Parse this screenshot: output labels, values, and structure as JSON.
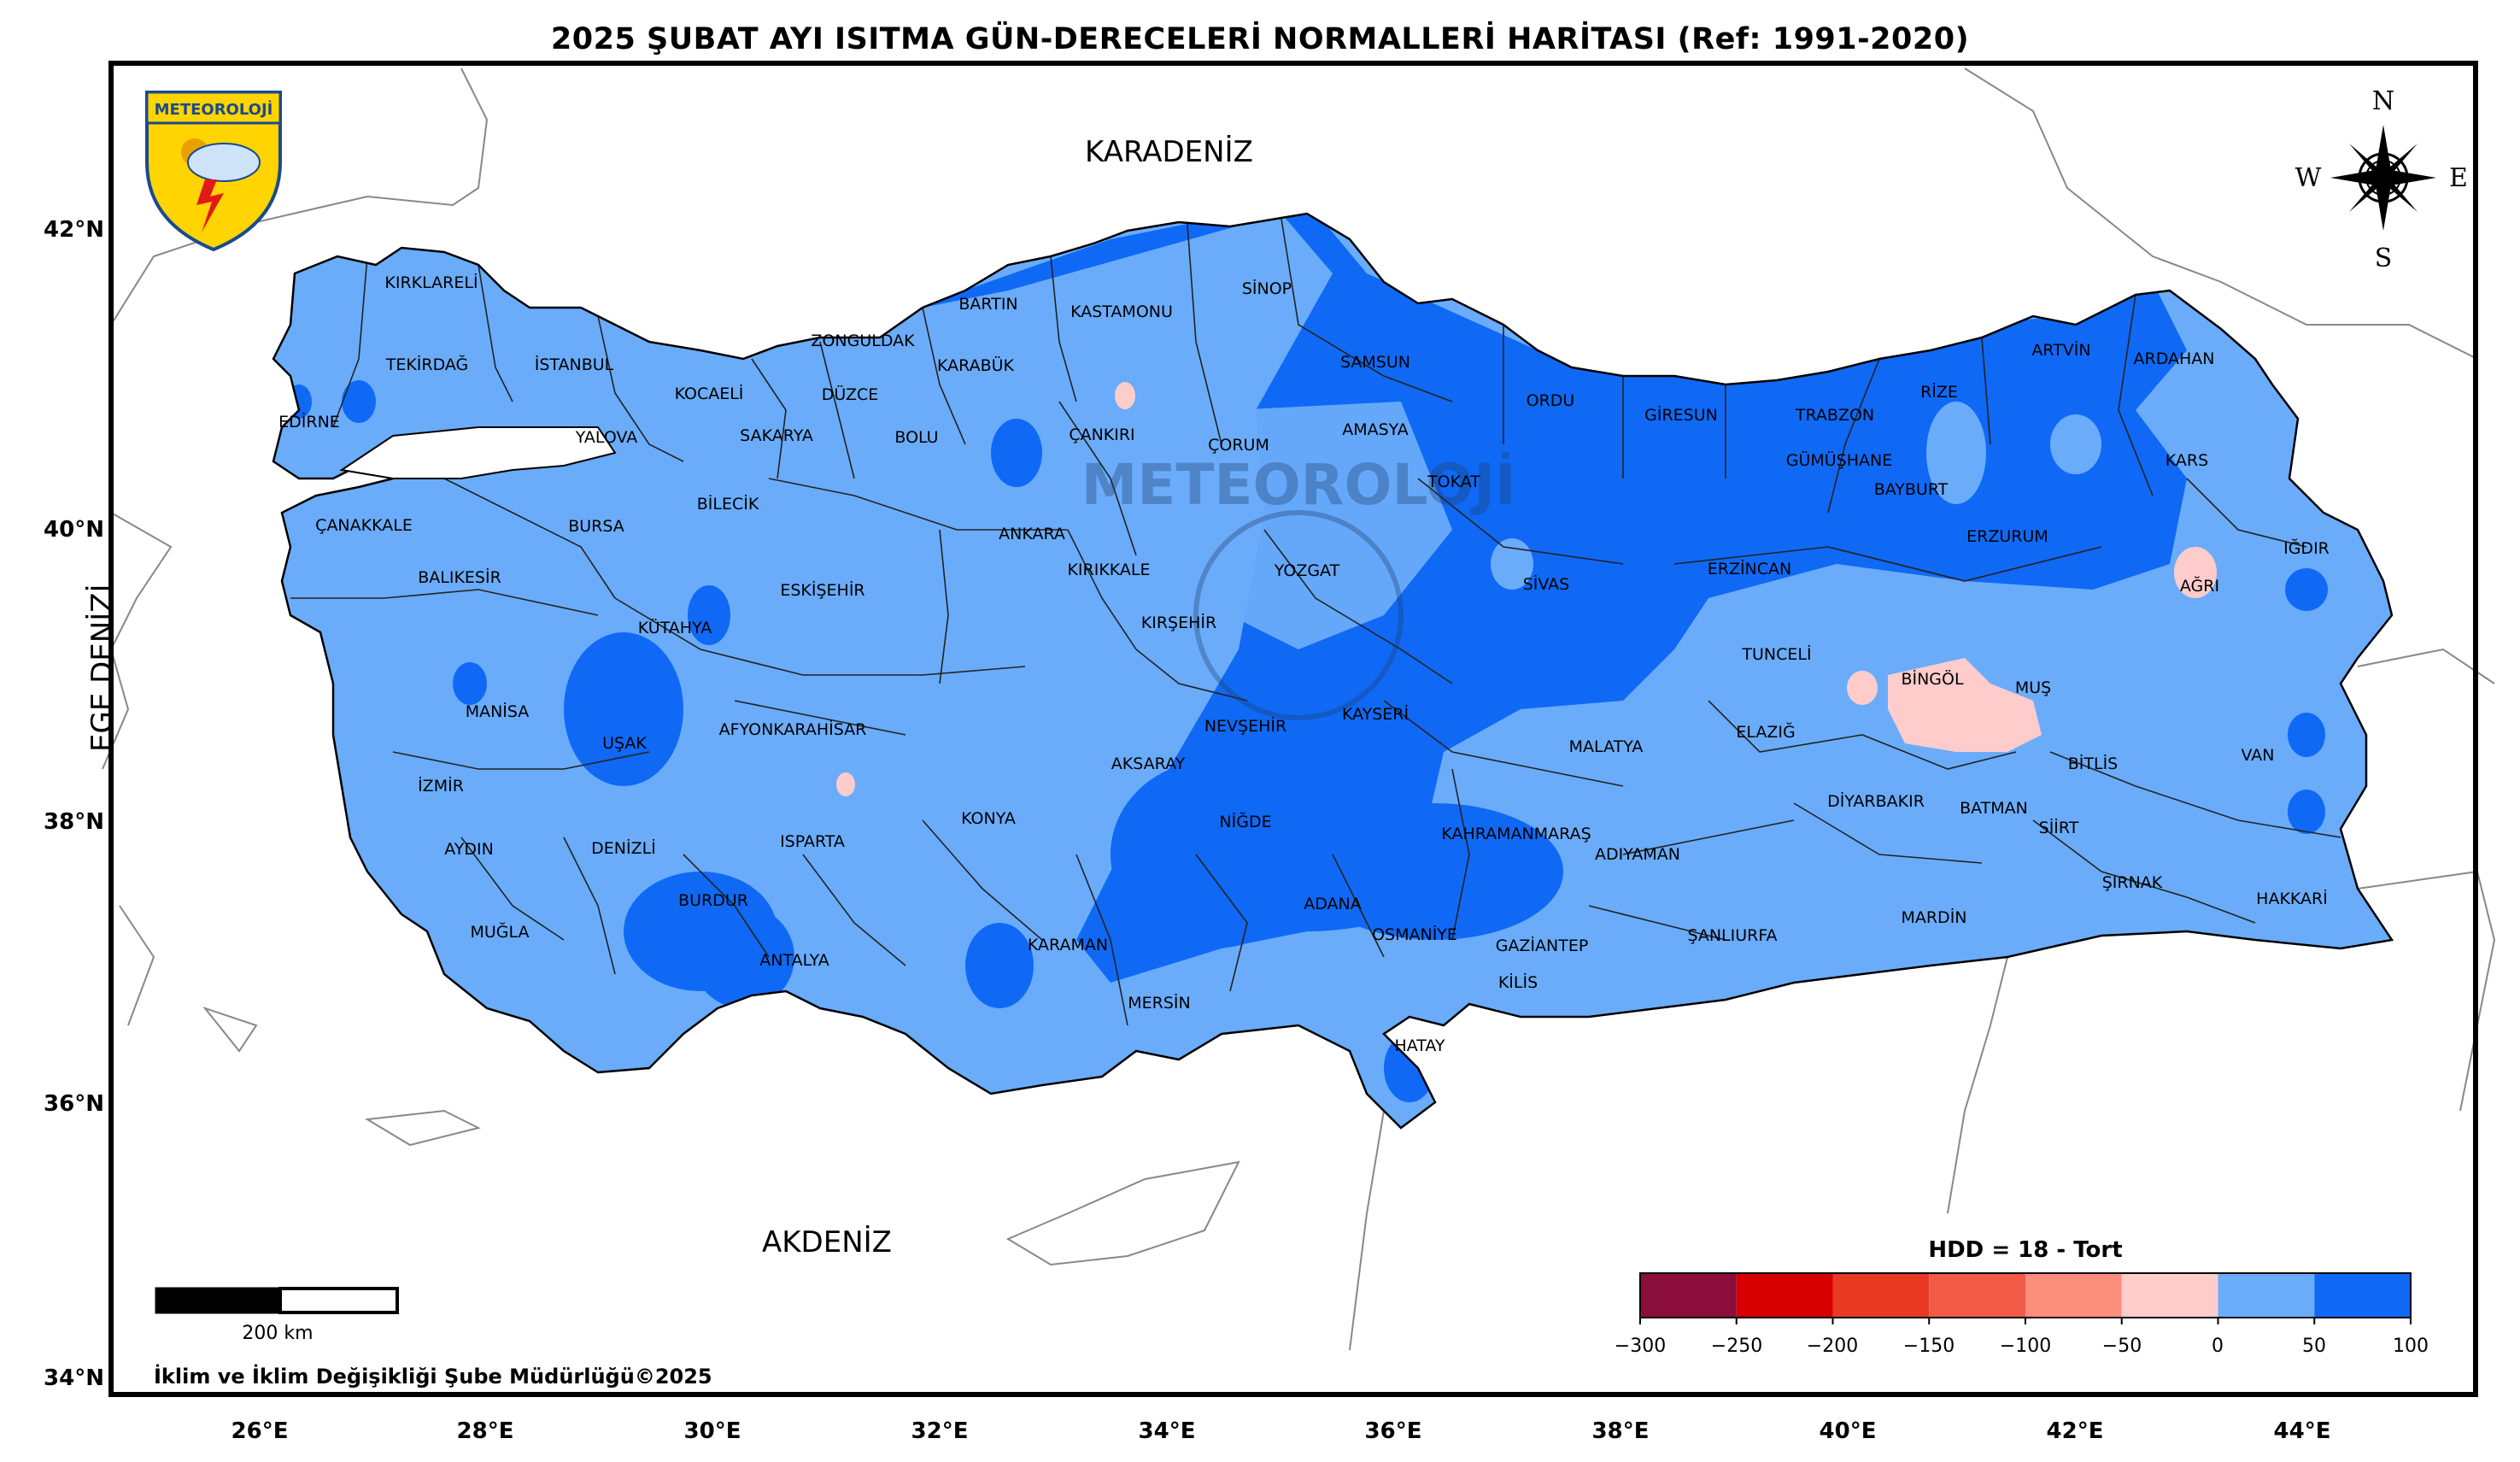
{
  "title": "2025 ŞUBAT AYI ISITMA GÜN-DERECELERİ NORMALLERİ HARİTASI (Ref: 1991-2020)",
  "logo_text": "METEOROLOJİ",
  "watermark_text": "METEOROLOJİ",
  "compass": {
    "n": "N",
    "s": "S",
    "e": "E",
    "w": "W"
  },
  "seas": {
    "north": "KARADENİZ",
    "south": "AKDENİZ",
    "west": "EGE DENİZİ"
  },
  "lon_ticks": [
    "26°E",
    "28°E",
    "30°E",
    "32°E",
    "34°E",
    "36°E",
    "38°E",
    "40°E",
    "42°E",
    "44°E"
  ],
  "lat_ticks": [
    "42°N",
    "40°N",
    "38°N",
    "36°N",
    "34°N"
  ],
  "provinces": {
    "kirklareli": "KIRKLARELİ",
    "edirne": "EDİRNE",
    "tekirdag": "TEKİRDAĞ",
    "istanbul": "İSTANBUL",
    "yalova": "YALOVA",
    "kocaeli": "KOCAELİ",
    "sakarya": "SAKARYA",
    "duzce": "DÜZCE",
    "zonguldak": "ZONGULDAK",
    "bartin": "BARTIN",
    "karabuk": "KARABÜK",
    "kastamonu": "KASTAMONU",
    "sinop": "SİNOP",
    "samsun": "SAMSUN",
    "ordu": "ORDU",
    "giresun": "GİRESUN",
    "trabzon": "TRABZON",
    "rize": "RİZE",
    "artvin": "ARTVİN",
    "ardahan": "ARDAHAN",
    "kars": "KARS",
    "igdir": "IĞDIR",
    "agri": "AĞRI",
    "erzurum": "ERZURUM",
    "bayburt": "BAYBURT",
    "gumushane": "GÜMÜŞHANE",
    "erzincan": "ERZİNCAN",
    "sivas": "SİVAS",
    "tokat": "TOKAT",
    "amasya": "AMASYA",
    "corum": "ÇORUM",
    "cankiri": "ÇANKIRI",
    "bolu": "BOLU",
    "bilecik": "BİLECİK",
    "bursa": "BURSA",
    "canakkale": "ÇANAKKALE",
    "balikesir": "BALIKESİR",
    "kutahya": "KÜTAHYA",
    "eskisehir": "ESKİŞEHİR",
    "ankara": "ANKARA",
    "kirikkale": "KIRIKKALE",
    "kirsehir": "KIRŞEHİR",
    "yozgat": "YOZGAT",
    "nevsehir": "NEVŞEHİR",
    "kayseri": "KAYSERİ",
    "aksaray": "AKSARAY",
    "nigde": "NİĞDE",
    "konya": "KONYA",
    "karaman": "KARAMAN",
    "mersin": "MERSİN",
    "adana": "ADANA",
    "osmaniye": "OSMANİYE",
    "hatay": "HATAY",
    "kilis": "KİLİS",
    "gaziantep": "GAZİANTEP",
    "kahramanmaras": "KAHRAMANMARAŞ",
    "adiyaman": "ADIYAMAN",
    "malatya": "MALATYA",
    "elazig": "ELAZIĞ",
    "tunceli": "TUNCELİ",
    "bingol": "BİNGÖL",
    "mus": "MUŞ",
    "bitlis": "BİTLİS",
    "van": "VAN",
    "hakkari": "HAKKARİ",
    "sirnak": "ŞIRNAK",
    "siirt": "SİİRT",
    "batman": "BATMAN",
    "diyarbakir": "DİYARBAKIR",
    "mardin": "MARDİN",
    "sanliurfa": "ŞANLIURFA",
    "manisa": "MANİSA",
    "usak": "UŞAK",
    "afyon": "AFYONKARAHİSAR",
    "izmir": "İZMİR",
    "aydin": "AYDIN",
    "denizli": "DENİZLİ",
    "mugla": "MUĞLA",
    "burdur": "BURDUR",
    "isparta": "ISPARTA",
    "antalya": "ANTALYA"
  },
  "scale_bar": {
    "label": "200 km"
  },
  "credit": "İklim ve İklim Değişikliği Şube Müdürlüğü©2025",
  "colorbar": {
    "title": "HDD = 18 - Tort",
    "ticks": [
      "−300",
      "−250",
      "−200",
      "−150",
      "−100",
      "−50",
      "0",
      "50",
      "100"
    ],
    "colors": [
      "#8b0d3b",
      "#d60000",
      "#e83a23",
      "#f15a47",
      "#fb8e7c",
      "#ffcccc",
      "#6aacfa",
      "#0f69f5"
    ]
  },
  "legend_colors": {
    "light_blue": "#6aacfa",
    "blue": "#0f69f5",
    "pink": "#ffcccc",
    "frame": "#000000"
  }
}
